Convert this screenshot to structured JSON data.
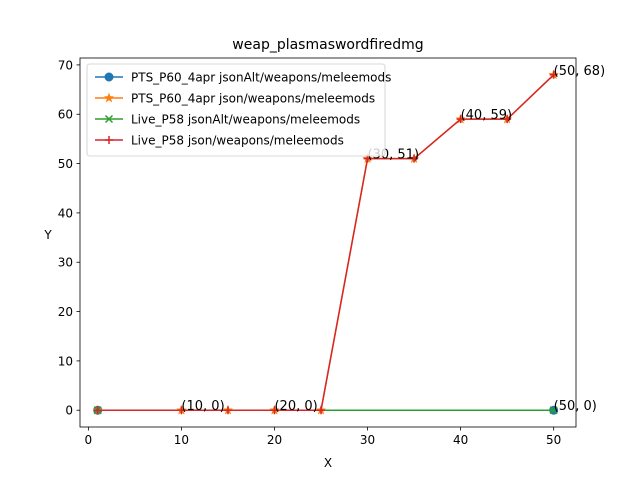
{
  "chart_data": {
    "type": "line",
    "title": "weap_plasmaswordfiredmg",
    "xlabel": "X",
    "ylabel": "Y",
    "xlim": [
      -0.9,
      52.4
    ],
    "ylim": [
      -3.4,
      71.4
    ],
    "xticks": [
      0,
      10,
      20,
      30,
      40,
      50
    ],
    "yticks": [
      0,
      10,
      20,
      30,
      40,
      50,
      60,
      70
    ],
    "grid": false,
    "legend_position": "upper-left",
    "series": [
      {
        "name": "PTS_P60_4apr jsonAlt/weapons/meleemods",
        "color": "#1f77b4",
        "marker": "circle",
        "x": [
          1,
          50
        ],
        "y": [
          0,
          0
        ]
      },
      {
        "name": "PTS_P60_4apr json/weapons/meleemods",
        "color": "#ff7f0e",
        "marker": "star",
        "x": [
          1,
          10,
          15,
          20,
          25,
          30,
          35,
          40,
          45,
          50
        ],
        "y": [
          0,
          0,
          0,
          0,
          0,
          51,
          51,
          59,
          59,
          68
        ]
      },
      {
        "name": "Live_P58 jsonAlt/weapons/meleemods",
        "color": "#2ca02c",
        "marker": "x",
        "x": [
          1,
          50
        ],
        "y": [
          0,
          0
        ]
      },
      {
        "name": "Live_P58 json/weapons/meleemods",
        "color": "#d62728",
        "marker": "plus",
        "x": [
          1,
          10,
          15,
          20,
          25,
          30,
          35,
          40,
          45,
          50
        ],
        "y": [
          0,
          0,
          0,
          0,
          0,
          51,
          51,
          59,
          59,
          68
        ]
      }
    ],
    "annotations": [
      {
        "text": "(10, 0)",
        "x": 10,
        "y": 0
      },
      {
        "text": "(20, 0)",
        "x": 20,
        "y": 0
      },
      {
        "text": "(30, 51)",
        "x": 30,
        "y": 51
      },
      {
        "text": "(40, 59)",
        "x": 40,
        "y": 59
      },
      {
        "text": "(50, 68)",
        "x": 50,
        "y": 68
      },
      {
        "text": "(50, 0)",
        "x": 50,
        "y": 0
      }
    ]
  }
}
